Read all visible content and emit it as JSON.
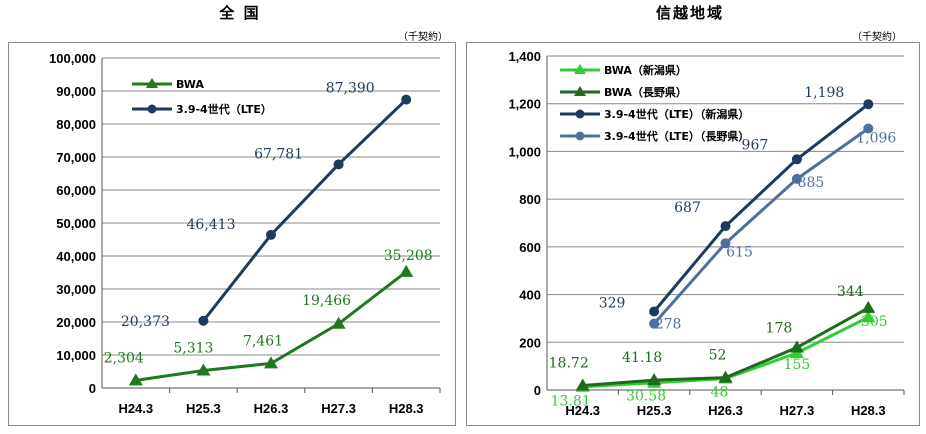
{
  "chart_data": [
    {
      "type": "line",
      "title": "全 国",
      "unit": "（千契約）",
      "categories": [
        "H24.3",
        "H25.3",
        "H26.3",
        "H27.3",
        "H28.3"
      ],
      "ylim": [
        0,
        100000
      ],
      "yticks": [
        "0",
        "10,000",
        "20,000",
        "30,000",
        "40,000",
        "50,000",
        "60,000",
        "70,000",
        "80,000",
        "90,000",
        "100,000"
      ],
      "grid": true,
      "legend": "top-left",
      "series": [
        {
          "name": "BWA",
          "color": "#1e7a1e",
          "marker": "triangle",
          "values": [
            2304,
            5313,
            7461,
            19466,
            35208
          ],
          "labels": [
            "2,304",
            "5,313",
            "7,461",
            "19,466",
            "35,208"
          ]
        },
        {
          "name": "3.9-4世代（LTE）",
          "color": "#1f3a5f",
          "marker": "circle",
          "values": [
            null,
            20373,
            46413,
            67781,
            87390
          ],
          "labels": [
            "",
            "20,373",
            "46,413",
            "67,781",
            "87,390"
          ]
        }
      ]
    },
    {
      "type": "line",
      "title": "信越地域",
      "unit": "（千契約）",
      "categories": [
        "H24.3",
        "H25.3",
        "H26.3",
        "H27.3",
        "H28.3"
      ],
      "ylim": [
        0,
        1400
      ],
      "yticks": [
        "0",
        "200",
        "400",
        "600",
        "800",
        "1,000",
        "1,200",
        "1,400"
      ],
      "grid": true,
      "legend": "top-left",
      "series": [
        {
          "name": "BWA（新潟県）",
          "color": "#33cc33",
          "marker": "triangle",
          "values": [
            13.81,
            30.58,
            48,
            155,
            305
          ],
          "labels": [
            "13.81",
            "30.58",
            "48",
            "155",
            "305"
          ]
        },
        {
          "name": "BWA（長野県）",
          "color": "#1e6b1e",
          "marker": "triangle",
          "values": [
            18.72,
            41.18,
            52,
            178,
            344
          ],
          "labels": [
            "18.72",
            "41.18",
            "52",
            "178",
            "344"
          ]
        },
        {
          "name": "3.9-4世代（LTE）（新潟県）",
          "color": "#1f3a5f",
          "marker": "circle",
          "values": [
            null,
            329,
            687,
            967,
            1198
          ],
          "labels": [
            "",
            "329",
            "687",
            "967",
            "1,198"
          ]
        },
        {
          "name": "3.9-4世代（LTE）（長野県）",
          "color": "#4f6f9f",
          "marker": "circle",
          "values": [
            null,
            278,
            615,
            885,
            1096
          ],
          "labels": [
            "",
            "278",
            "615",
            "885",
            "1,096"
          ]
        }
      ]
    }
  ]
}
